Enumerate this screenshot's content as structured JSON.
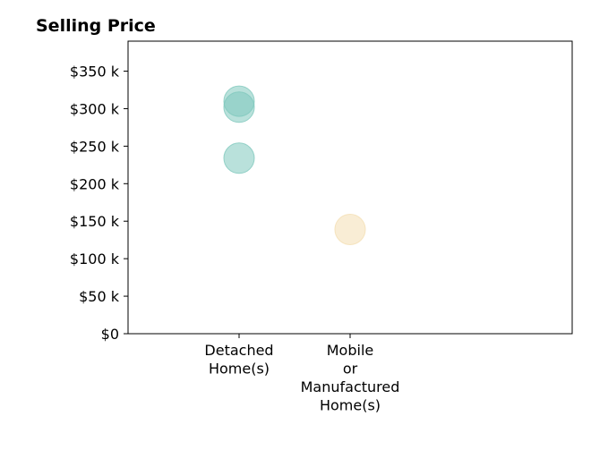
{
  "chart_data": {
    "type": "scatter",
    "title": "Selling Price",
    "xlabel": "",
    "ylabel": "",
    "categories": [
      [
        "Detached",
        "Home(s)"
      ],
      [
        "Mobile",
        "or",
        "Manufactured",
        "Home(s)"
      ]
    ],
    "ylim": [
      0,
      390
    ],
    "y_ticks": [
      0,
      50,
      100,
      150,
      200,
      250,
      300,
      350
    ],
    "y_tick_labels": [
      "$0",
      "$50 k",
      "$100 k",
      "$150 k",
      "$200 k",
      "$250 k",
      "$300 k",
      "$350 k"
    ],
    "grid": false,
    "legend": "none",
    "points": [
      {
        "category": 0,
        "y": 310,
        "color": "#7fc8bd"
      },
      {
        "category": 0,
        "y": 302,
        "color": "#7fc8bd"
      },
      {
        "category": 0,
        "y": 234,
        "color": "#7fc8bd"
      },
      {
        "category": 1,
        "y": 139,
        "color": "#f4dfb3"
      }
    ]
  }
}
